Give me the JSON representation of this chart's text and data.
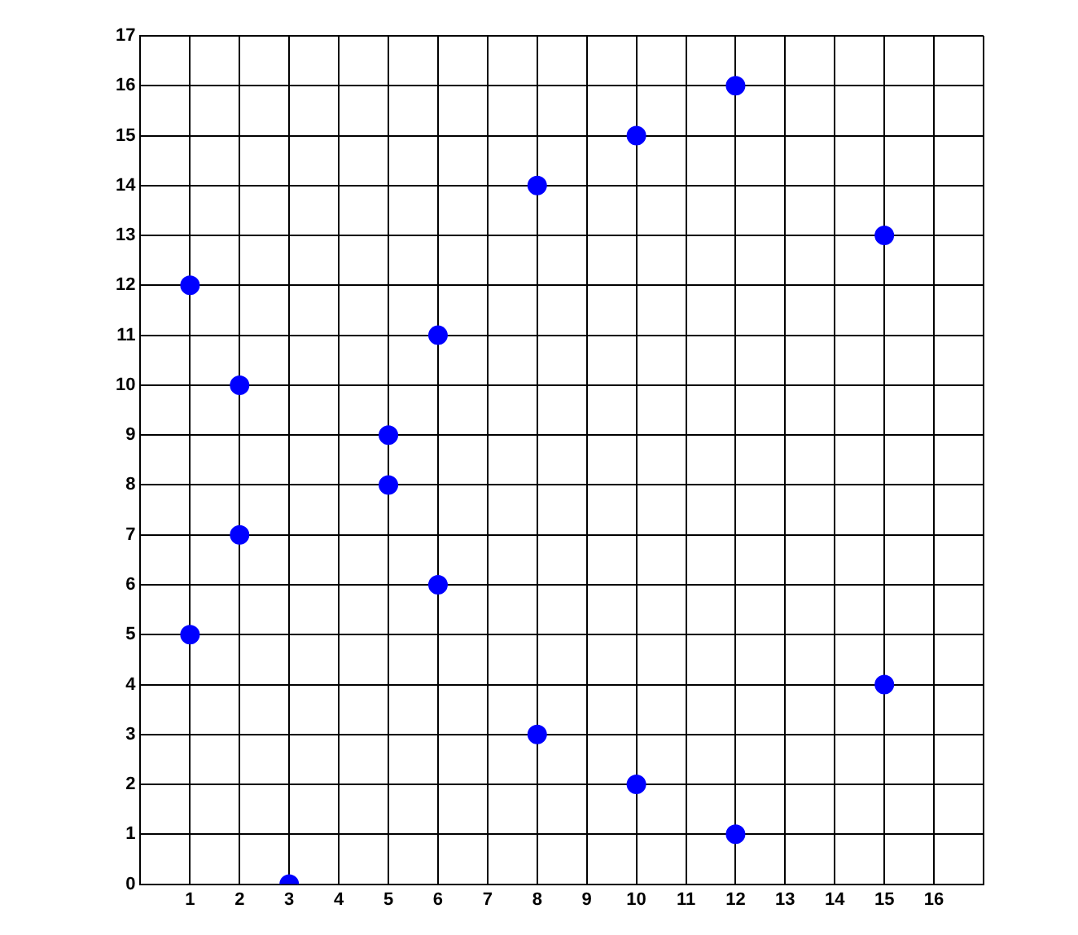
{
  "chart_data": {
    "type": "scatter",
    "x": [
      1,
      1,
      2,
      2,
      3,
      5,
      5,
      6,
      6,
      8,
      8,
      10,
      10,
      12,
      12,
      15,
      15
    ],
    "values": [
      12,
      5,
      10,
      7,
      0,
      9,
      8,
      11,
      6,
      14,
      3,
      15,
      2,
      16,
      1,
      13,
      4
    ],
    "color": "#0000ff",
    "marker": "circle",
    "grid": true,
    "legend": false,
    "xlim": [
      0,
      17
    ],
    "xticks": [
      {
        "value": 0,
        "label": null
      },
      1,
      2,
      3,
      4,
      5,
      6,
      7,
      8,
      9,
      10,
      11,
      12,
      13,
      14,
      15,
      16,
      {
        "value": 17,
        "label": null
      }
    ],
    "ylim": [
      0,
      17
    ],
    "yticks": [
      0,
      1,
      2,
      3,
      4,
      5,
      6,
      7,
      8,
      9,
      10,
      11,
      12,
      13,
      14,
      15,
      16,
      17
    ]
  }
}
